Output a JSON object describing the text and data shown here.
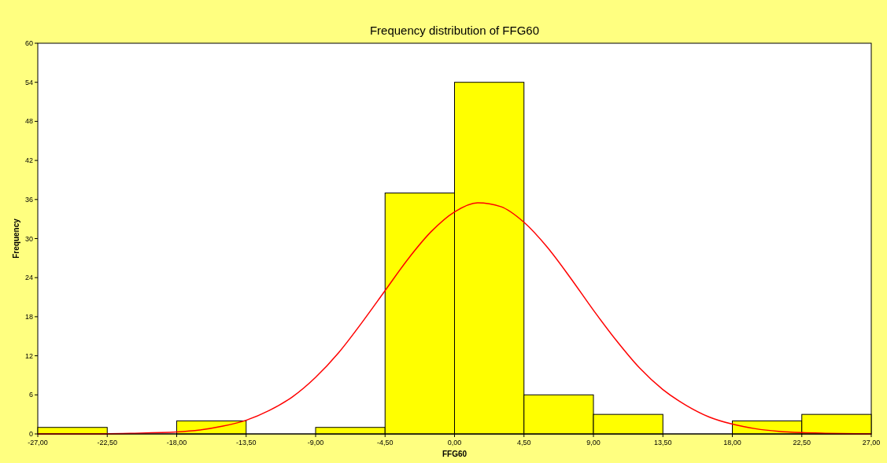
{
  "chart_data": {
    "type": "histogram",
    "title": "Frequency distribution of FFG60",
    "xlabel": "FFG60",
    "ylabel": "Frequency",
    "bins": [
      -27,
      -22.5,
      -18,
      -13.5,
      -9,
      -4.5,
      0,
      4.5,
      9,
      13.5,
      18,
      22.5,
      27
    ],
    "series": [
      {
        "color": "#ffff00",
        "values": [
          1,
          0,
          2,
          0,
          1,
          37,
          54,
          6,
          3,
          0,
          2,
          3
        ]
      },
      {
        "type": "line",
        "color": "#ff0000",
        "x": [
          -27,
          -24,
          -21,
          -18,
          -16.5,
          -15,
          -13.5,
          -12,
          -10.5,
          -9,
          -7.5,
          -6,
          -4.5,
          -3,
          -1.5,
          0,
          1.5,
          3,
          4.5,
          6,
          7.5,
          9,
          10.5,
          12,
          13.5,
          15,
          16.5,
          18,
          19.5,
          21,
          22.5,
          24,
          27
        ],
        "values": [
          0,
          0,
          0.1,
          0.3,
          0.6,
          1.2,
          2.1,
          3.6,
          5.7,
          8.7,
          12.5,
          17.1,
          22,
          26.9,
          31.1,
          34.1,
          35.5,
          34.9,
          32.5,
          28.7,
          24,
          19,
          14.3,
          10.1,
          6.8,
          4.4,
          2.6,
          1.5,
          0.8,
          0.4,
          0.2,
          0.1,
          0
        ]
      }
    ],
    "xlim": [
      -27,
      27
    ],
    "xticks": [
      {
        "value": -27,
        "label": "-27,00"
      },
      {
        "value": -22.5,
        "label": "-22,50"
      },
      {
        "value": -18,
        "label": "-18,00"
      },
      {
        "value": -13.5,
        "label": "-13,50"
      },
      {
        "value": -9,
        "label": "-9,00"
      },
      {
        "value": -4.5,
        "label": "-4,50"
      },
      {
        "value": 0,
        "label": "0,00"
      },
      {
        "value": 4.5,
        "label": "4,50"
      },
      {
        "value": 9,
        "label": "9,00"
      },
      {
        "value": 13.5,
        "label": "13,50"
      },
      {
        "value": 18,
        "label": "18,00"
      },
      {
        "value": 22.5,
        "label": "22,50"
      },
      {
        "value": 27,
        "label": "27,00"
      }
    ],
    "ylim": [
      0,
      60
    ],
    "yticks": [
      0,
      6,
      12,
      18,
      24,
      30,
      36,
      42,
      48,
      54,
      60
    ],
    "grid": false
  }
}
